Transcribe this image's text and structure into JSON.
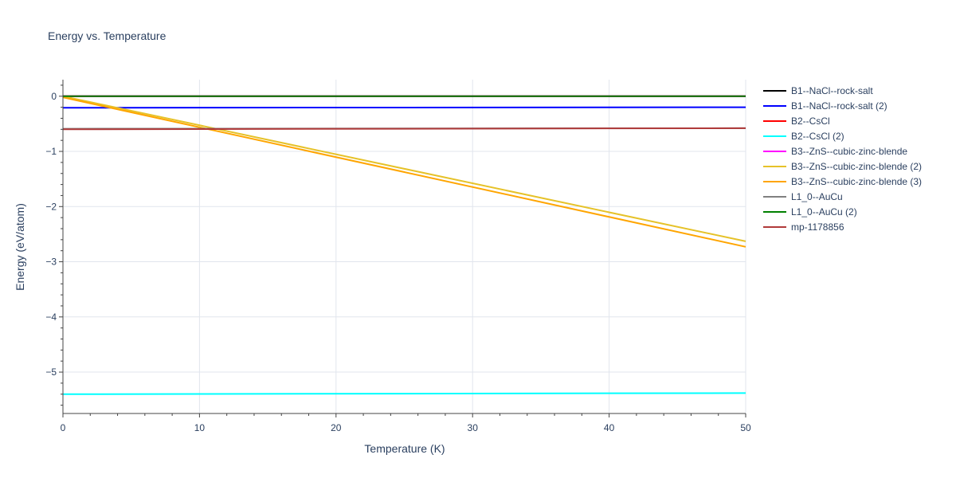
{
  "chart_data": {
    "type": "line",
    "title": "Energy vs. Temperature",
    "xlabel": "Temperature (K)",
    "ylabel": "Energy (eV/atom)",
    "xlim": [
      0,
      50
    ],
    "ylim": [
      -5.75,
      0.3
    ],
    "x_ticks": [
      0,
      10,
      20,
      30,
      40,
      50
    ],
    "y_ticks": [
      0,
      -1,
      -2,
      -3,
      -4,
      -5
    ],
    "y_tick_labels": [
      "0",
      "−1",
      "−2",
      "−3",
      "−4",
      "−5"
    ],
    "x_minor_step": 2,
    "y_minor_step": 0.2,
    "grid": true,
    "legend_position": "right",
    "series": [
      {
        "name": "B1--NaCl--rock-salt",
        "color": "#000000",
        "x": [
          0,
          50
        ],
        "y": [
          0,
          0
        ]
      },
      {
        "name": "B1--NaCl--rock-salt (2)",
        "color": "#0000ff",
        "x": [
          0,
          50
        ],
        "y": [
          -0.21,
          -0.2
        ]
      },
      {
        "name": "B2--CsCl",
        "color": "#ff0000",
        "x": [
          0,
          50
        ],
        "y": [
          0,
          0
        ]
      },
      {
        "name": "B2--CsCl (2)",
        "color": "#00ffff",
        "x": [
          0,
          50
        ],
        "y": [
          -5.4,
          -5.38
        ]
      },
      {
        "name": "B3--ZnS--cubic-zinc-blende",
        "color": "#ff00ff",
        "x": [
          0,
          50
        ],
        "y": [
          0,
          0
        ]
      },
      {
        "name": "B3--ZnS--cubic-zinc-blende (2)",
        "color": "#e6c229",
        "x": [
          0,
          50
        ],
        "y": [
          0,
          -2.63
        ]
      },
      {
        "name": "B3--ZnS--cubic-zinc-blende (3)",
        "color": "#ffa500",
        "x": [
          0,
          50
        ],
        "y": [
          -0.02,
          -2.73
        ]
      },
      {
        "name": "L1_0--AuCu",
        "color": "#808080",
        "x": [
          0,
          50
        ],
        "y": [
          -0.59,
          -0.58
        ]
      },
      {
        "name": "L1_0--AuCu (2)",
        "color": "#008000",
        "x": [
          0,
          50
        ],
        "y": [
          0,
          0
        ]
      },
      {
        "name": "mp-1178856",
        "color": "#b03a3a",
        "x": [
          0,
          50
        ],
        "y": [
          -0.6,
          -0.58
        ]
      }
    ]
  }
}
